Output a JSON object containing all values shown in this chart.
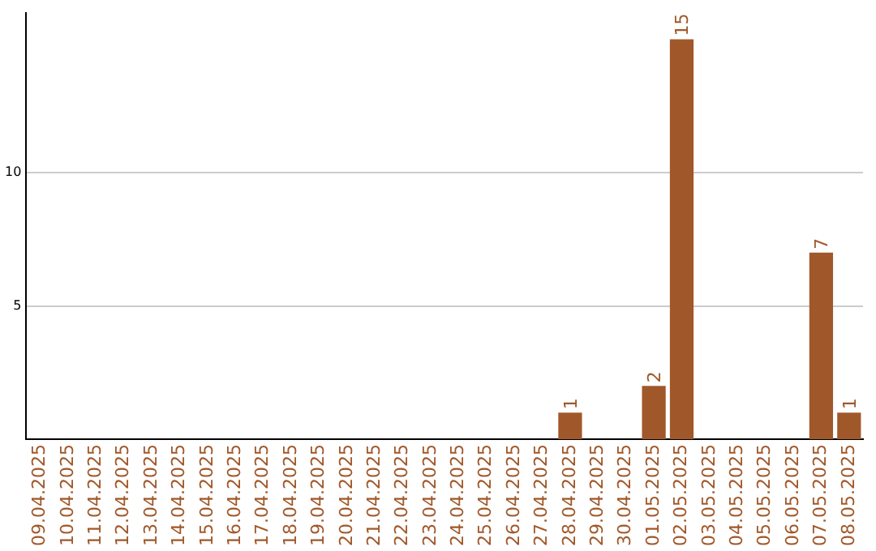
{
  "chart_data": {
    "type": "bar",
    "categories": [
      "09.04.2025",
      "10.04.2025",
      "11.04.2025",
      "12.04.2025",
      "13.04.2025",
      "14.04.2025",
      "15.04.2025",
      "16.04.2025",
      "17.04.2025",
      "18.04.2025",
      "19.04.2025",
      "20.04.2025",
      "21.04.2025",
      "22.04.2025",
      "23.04.2025",
      "24.04.2025",
      "25.04.2025",
      "26.04.2025",
      "27.04.2025",
      "28.04.2025",
      "29.04.2025",
      "30.04.2025",
      "01.05.2025",
      "02.05.2025",
      "03.05.2025",
      "04.05.2025",
      "05.05.2025",
      "06.05.2025",
      "07.05.2025",
      "08.05.2025"
    ],
    "values": [
      0,
      0,
      0,
      0,
      0,
      0,
      0,
      0,
      0,
      0,
      0,
      0,
      0,
      0,
      0,
      0,
      0,
      0,
      0,
      1,
      0,
      0,
      2,
      15,
      0,
      0,
      0,
      0,
      7,
      1
    ],
    "value_labels": [
      null,
      null,
      null,
      null,
      null,
      null,
      null,
      null,
      null,
      null,
      null,
      null,
      null,
      null,
      null,
      null,
      null,
      null,
      null,
      "1",
      null,
      null,
      "2",
      "15",
      null,
      null,
      null,
      null,
      "7",
      "1"
    ],
    "color": "#a0582a",
    "ylim": [
      0,
      16
    ],
    "yticks": [
      5,
      10
    ],
    "grid": "y",
    "legend": false
  }
}
